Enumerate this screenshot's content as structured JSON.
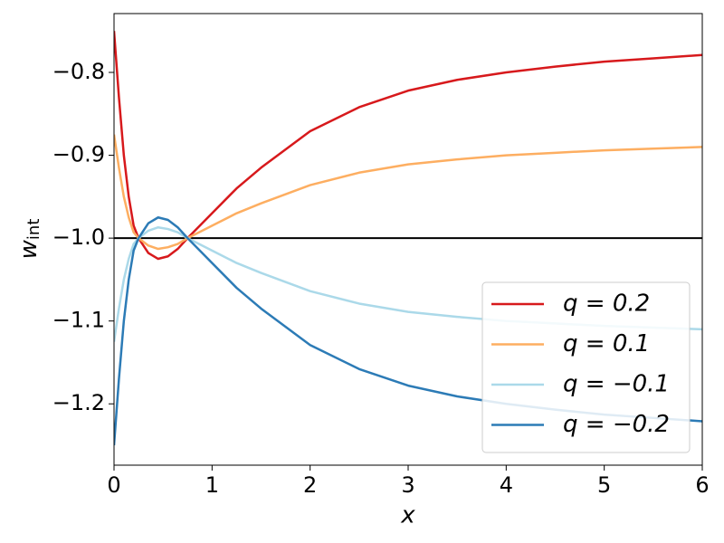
{
  "chart_data": {
    "type": "line",
    "xlabel": "x",
    "ylabel": {
      "text": "w",
      "subscript": "int"
    },
    "x": [
      0,
      0.05,
      0.1,
      0.15,
      0.2,
      0.25,
      0.35,
      0.45,
      0.55,
      0.65,
      0.75,
      1,
      1.25,
      1.5,
      2,
      2.5,
      3,
      3.5,
      4,
      4.5,
      5,
      5.5,
      6
    ],
    "series": [
      {
        "name": "q = 0.2",
        "color": "#d7191c",
        "values": [
          -0.75,
          -0.83,
          -0.9,
          -0.95,
          -0.985,
          -1.0,
          -1.018,
          -1.025,
          -1.022,
          -1.013,
          -1.0,
          -0.97,
          -0.94,
          -0.915,
          -0.871,
          -0.842,
          -0.822,
          -0.809,
          -0.8,
          -0.793,
          -0.787,
          -0.783,
          -0.779
        ]
      },
      {
        "name": "q = 0.1",
        "color": "#fdae61",
        "values": [
          -0.875,
          -0.915,
          -0.95,
          -0.975,
          -0.993,
          -1.0,
          -1.009,
          -1.013,
          -1.011,
          -1.007,
          -1.0,
          -0.985,
          -0.97,
          -0.958,
          -0.936,
          -0.921,
          -0.911,
          -0.905,
          -0.9,
          -0.897,
          -0.894,
          -0.892,
          -0.89
        ]
      },
      {
        "name": "q = −0.1",
        "color": "#abd9e9",
        "values": [
          -1.125,
          -1.085,
          -1.05,
          -1.025,
          -1.007,
          -1.0,
          -0.991,
          -0.987,
          -0.989,
          -0.993,
          -1.0,
          -1.015,
          -1.03,
          -1.042,
          -1.064,
          -1.079,
          -1.089,
          -1.095,
          -1.1,
          -1.103,
          -1.106,
          -1.108,
          -1.11
        ]
      },
      {
        "name": "q = −0.2",
        "color": "#2c7bb6",
        "values": [
          -1.25,
          -1.17,
          -1.1,
          -1.05,
          -1.015,
          -1.0,
          -0.982,
          -0.975,
          -0.978,
          -0.987,
          -1.0,
          -1.03,
          -1.06,
          -1.085,
          -1.129,
          -1.158,
          -1.178,
          -1.191,
          -1.2,
          -1.207,
          -1.213,
          -1.217,
          -1.221
        ]
      }
    ],
    "hline": {
      "value": -1.0,
      "color": "#000000"
    },
    "xlim": [
      0,
      6
    ],
    "xticks": [
      0,
      1,
      2,
      3,
      4,
      5,
      6
    ],
    "ylim": [
      -1.274,
      -0.729
    ],
    "yticks": [
      {
        "value": -1.2,
        "label": "−1.2"
      },
      {
        "value": -1.1,
        "label": "−1.1"
      },
      {
        "value": -1.0,
        "label": "−1.0"
      },
      {
        "value": -0.9,
        "label": "−0.9"
      },
      {
        "value": -0.8,
        "label": "−0.8"
      }
    ],
    "legend": "lower right",
    "grid": false
  }
}
